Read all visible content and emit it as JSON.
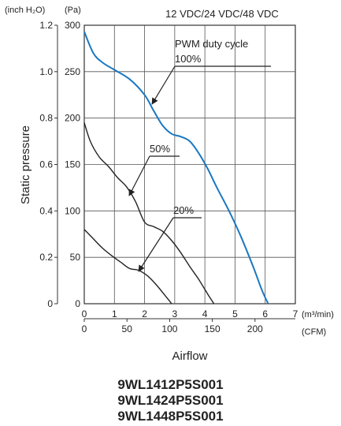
{
  "chart_data": {
    "type": "line",
    "title": "12 VDC/24 VDC/48 VDC",
    "ylabel": "Static pressure",
    "xlabel": "Airflow",
    "y_units": [
      "(inch H₂O)",
      "(Pa)"
    ],
    "x_units": [
      "(m³/min)",
      "(CFM)"
    ],
    "y_axis_pa": {
      "range": [
        0,
        300
      ],
      "ticks": [
        "0",
        "50",
        "100",
        "150",
        "200",
        "250",
        "300"
      ]
    },
    "y_axis_inch": {
      "range": [
        0,
        1.2
      ],
      "ticks": [
        "0",
        "0.2",
        "0.4",
        "0.6",
        "0.8",
        "1.0",
        "1.2"
      ]
    },
    "x_axis_m3min": {
      "range": [
        0,
        7
      ],
      "ticks": [
        "0",
        "1",
        "2",
        "3",
        "4",
        "5",
        "6",
        "7"
      ]
    },
    "x_axis_cfm": {
      "ticks": [
        "0",
        "50",
        "100",
        "150",
        "200"
      ],
      "tick_values_m3min": [
        0,
        1.416,
        2.832,
        4.248,
        5.663
      ]
    },
    "grid": true,
    "legend_title": "PWM duty cycle",
    "series": [
      {
        "name": "100%",
        "color": "#1a78c2",
        "x": [
          0,
          0.3,
          0.6,
          1.0,
          1.5,
          2.0,
          2.3,
          2.6,
          2.9,
          3.2,
          3.5,
          3.8,
          4.1,
          4.4,
          4.8,
          5.2,
          5.6,
          5.9,
          6.1
        ],
        "y": [
          293,
          270,
          260,
          252,
          242,
          225,
          208,
          192,
          183,
          180,
          175,
          162,
          145,
          125,
          100,
          72,
          40,
          14,
          0
        ]
      },
      {
        "name": "50%",
        "color": "#222222",
        "x": [
          0,
          0.2,
          0.5,
          0.8,
          1.1,
          1.4,
          1.7,
          2.0,
          2.3,
          2.6,
          2.9,
          3.2,
          3.5,
          3.8,
          4.1,
          4.3
        ],
        "y": [
          195,
          175,
          158,
          148,
          136,
          126,
          110,
          88,
          83,
          78,
          68,
          55,
          40,
          26,
          10,
          0
        ]
      },
      {
        "name": "20%",
        "color": "#222222",
        "x": [
          0,
          0.3,
          0.6,
          0.9,
          1.2,
          1.5,
          1.8,
          2.1,
          2.4,
          2.7,
          2.9
        ],
        "y": [
          80,
          70,
          60,
          52,
          45,
          38,
          36,
          30,
          20,
          8,
          0
        ]
      }
    ]
  },
  "models": [
    "9WL1412P5S001",
    "9WL1424P5S001",
    "9WL1448P5S001"
  ]
}
